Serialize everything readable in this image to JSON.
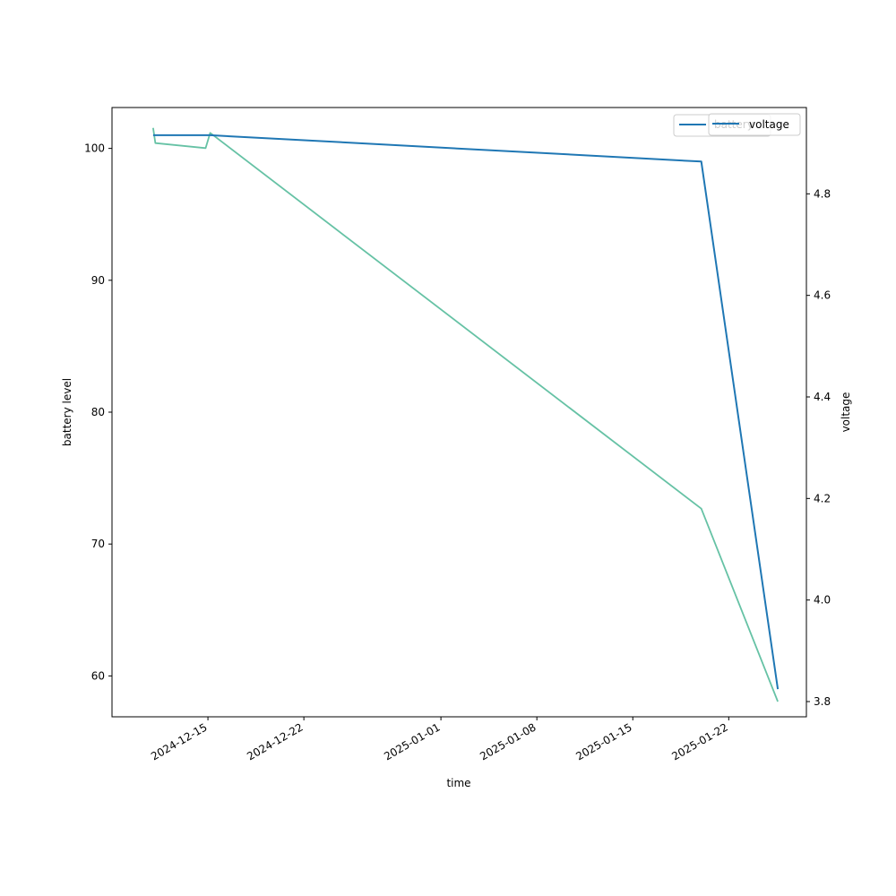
{
  "chart_data": {
    "type": "line",
    "title": "",
    "xlabel": "time",
    "ylabel": "battery level",
    "y2label": "voltage",
    "xlim": [
      "2024-12-08T00:00",
      "2025-01-27T16:00"
    ],
    "ylim": [
      56.9,
      103.1
    ],
    "y2lim": [
      3.77,
      4.97
    ],
    "x_ticks": [
      "2024-12-15",
      "2024-12-22",
      "2025-01-01",
      "2025-01-08",
      "2025-01-15",
      "2025-01-22"
    ],
    "y_ticks": [
      60,
      70,
      80,
      90,
      100
    ],
    "y2_ticks": [
      3.8,
      4.0,
      4.2,
      4.4,
      4.6,
      4.8
    ],
    "y2_tick_labels": [
      "3.8",
      "4.0",
      "4.2",
      "4.4",
      "4.6",
      "4.8"
    ],
    "grid": false,
    "series": [
      {
        "name": "battery",
        "axis": "left",
        "color": "#1f77b4",
        "x": [
          "2024-12-11T00:00",
          "2024-12-15T04:00",
          "2025-01-20T00:00",
          "2025-01-25T14:00"
        ],
        "y": [
          101,
          101,
          99,
          59
        ]
      },
      {
        "name": "voltage",
        "axis": "right",
        "color": "#66c2a5",
        "x": [
          "2024-12-11T00:00",
          "2024-12-11T04:00",
          "2024-12-14T20:00",
          "2024-12-15T04:00",
          "2025-01-20T00:00",
          "2025-01-25T14:00"
        ],
        "y": [
          4.93,
          4.9,
          4.89,
          4.92,
          4.18,
          3.8
        ]
      }
    ],
    "legends": [
      {
        "position": "top-right",
        "entries": [
          "battery"
        ]
      },
      {
        "position": "top-right",
        "entries": [
          "voltage"
        ]
      }
    ]
  }
}
